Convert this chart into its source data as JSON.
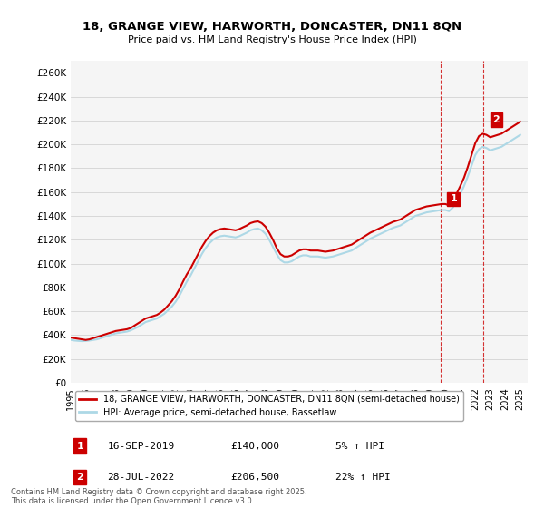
{
  "title": "18, GRANGE VIEW, HARWORTH, DONCASTER, DN11 8QN",
  "subtitle": "Price paid vs. HM Land Registry's House Price Index (HPI)",
  "ylabel": "",
  "xlabel": "",
  "ylim": [
    0,
    270000
  ],
  "yticks": [
    0,
    20000,
    40000,
    60000,
    80000,
    100000,
    120000,
    140000,
    160000,
    180000,
    200000,
    220000,
    240000,
    260000
  ],
  "hpi_color": "#add8e6",
  "price_color": "#cc0000",
  "vline_color": "#cc0000",
  "vline_style": "dashed",
  "background_color": "#f5f5f5",
  "legend_label_price": "18, GRANGE VIEW, HARWORTH, DONCASTER, DN11 8QN (semi-detached house)",
  "legend_label_hpi": "HPI: Average price, semi-detached house, Bassetlaw",
  "annotation1_label": "1",
  "annotation1_date": "16-SEP-2019",
  "annotation1_price": "£140,000",
  "annotation1_hpi": "5% ↑ HPI",
  "annotation1_year": 2019.71,
  "annotation2_label": "2",
  "annotation2_date": "28-JUL-2022",
  "annotation2_price": "£206,500",
  "annotation2_hpi": "22% ↑ HPI",
  "annotation2_year": 2022.56,
  "footer": "Contains HM Land Registry data © Crown copyright and database right 2025.\nThis data is licensed under the Open Government Licence v3.0.",
  "hpi_data": {
    "years": [
      1995.0,
      1995.25,
      1995.5,
      1995.75,
      1996.0,
      1996.25,
      1996.5,
      1996.75,
      1997.0,
      1997.25,
      1997.5,
      1997.75,
      1998.0,
      1998.25,
      1998.5,
      1998.75,
      1999.0,
      1999.25,
      1999.5,
      1999.75,
      2000.0,
      2000.25,
      2000.5,
      2000.75,
      2001.0,
      2001.25,
      2001.5,
      2001.75,
      2002.0,
      2002.25,
      2002.5,
      2002.75,
      2003.0,
      2003.25,
      2003.5,
      2003.75,
      2004.0,
      2004.25,
      2004.5,
      2004.75,
      2005.0,
      2005.25,
      2005.5,
      2005.75,
      2006.0,
      2006.25,
      2006.5,
      2006.75,
      2007.0,
      2007.25,
      2007.5,
      2007.75,
      2008.0,
      2008.25,
      2008.5,
      2008.75,
      2009.0,
      2009.25,
      2009.5,
      2009.75,
      2010.0,
      2010.25,
      2010.5,
      2010.75,
      2011.0,
      2011.25,
      2011.5,
      2011.75,
      2012.0,
      2012.25,
      2012.5,
      2012.75,
      2013.0,
      2013.25,
      2013.5,
      2013.75,
      2014.0,
      2014.25,
      2014.5,
      2014.75,
      2015.0,
      2015.25,
      2015.5,
      2015.75,
      2016.0,
      2016.25,
      2016.5,
      2016.75,
      2017.0,
      2017.25,
      2017.5,
      2017.75,
      2018.0,
      2018.25,
      2018.5,
      2018.75,
      2019.0,
      2019.25,
      2019.5,
      2019.75,
      2020.0,
      2020.25,
      2020.5,
      2020.75,
      2021.0,
      2021.25,
      2021.5,
      2021.75,
      2022.0,
      2022.25,
      2022.5,
      2022.75,
      2023.0,
      2023.25,
      2023.5,
      2023.75,
      2024.0,
      2024.25,
      2024.5,
      2024.75,
      2025.0
    ],
    "values": [
      36000,
      35500,
      35200,
      35000,
      35200,
      35500,
      36000,
      36500,
      37500,
      38500,
      39500,
      40500,
      41500,
      42000,
      42500,
      43000,
      44000,
      45500,
      47000,
      49000,
      51000,
      52000,
      53000,
      54000,
      56000,
      58000,
      61000,
      64000,
      68000,
      73000,
      79000,
      85000,
      90000,
      96000,
      102000,
      108000,
      113000,
      117000,
      120000,
      122000,
      123000,
      123500,
      123000,
      122500,
      122000,
      123000,
      124500,
      126000,
      128000,
      129000,
      129500,
      128000,
      125000,
      120000,
      114000,
      108000,
      103000,
      101000,
      101000,
      102000,
      104000,
      106000,
      107000,
      107000,
      106000,
      106000,
      106000,
      105500,
      105000,
      105500,
      106000,
      107000,
      108000,
      109000,
      110000,
      111000,
      113000,
      115000,
      117000,
      119000,
      121000,
      122500,
      124000,
      125500,
      127000,
      128500,
      130000,
      131000,
      132000,
      134000,
      136000,
      138000,
      140000,
      141000,
      142000,
      143000,
      143500,
      144000,
      144500,
      145000,
      145000,
      144000,
      147000,
      152000,
      158000,
      165000,
      173000,
      182000,
      191000,
      196000,
      198000,
      197000,
      195000,
      196000,
      197000,
      198000,
      200000,
      202000,
      204000,
      206000,
      208000
    ]
  },
  "price_data": {
    "years": [
      1995.0,
      1995.25,
      1995.5,
      1995.75,
      1996.0,
      1996.25,
      1996.5,
      1996.75,
      1997.0,
      1997.25,
      1997.5,
      1997.75,
      1998.0,
      1998.25,
      1998.5,
      1998.75,
      1999.0,
      1999.25,
      1999.5,
      1999.75,
      2000.0,
      2000.25,
      2000.5,
      2000.75,
      2001.0,
      2001.25,
      2001.5,
      2001.75,
      2002.0,
      2002.25,
      2002.5,
      2002.75,
      2003.0,
      2003.25,
      2003.5,
      2003.75,
      2004.0,
      2004.25,
      2004.5,
      2004.75,
      2005.0,
      2005.25,
      2005.5,
      2005.75,
      2006.0,
      2006.25,
      2006.5,
      2006.75,
      2007.0,
      2007.25,
      2007.5,
      2007.75,
      2008.0,
      2008.25,
      2008.5,
      2008.75,
      2009.0,
      2009.25,
      2009.5,
      2009.75,
      2010.0,
      2010.25,
      2010.5,
      2010.75,
      2011.0,
      2011.25,
      2011.5,
      2011.75,
      2012.0,
      2012.25,
      2012.5,
      2012.75,
      2013.0,
      2013.25,
      2013.5,
      2013.75,
      2014.0,
      2014.25,
      2014.5,
      2014.75,
      2015.0,
      2015.25,
      2015.5,
      2015.75,
      2016.0,
      2016.25,
      2016.5,
      2016.75,
      2017.0,
      2017.25,
      2017.5,
      2017.75,
      2018.0,
      2018.25,
      2018.5,
      2018.75,
      2019.0,
      2019.25,
      2019.5,
      2019.75,
      2020.0,
      2020.25,
      2020.5,
      2020.75,
      2021.0,
      2021.25,
      2021.5,
      2021.75,
      2022.0,
      2022.25,
      2022.5,
      2022.75,
      2023.0,
      2023.25,
      2023.5,
      2023.75,
      2024.0,
      2024.25,
      2024.5,
      2024.75,
      2025.0
    ],
    "values": [
      38000,
      37500,
      37000,
      36500,
      36000,
      36500,
      37500,
      38500,
      39500,
      40500,
      41500,
      42500,
      43500,
      44000,
      44500,
      45000,
      46000,
      48000,
      50000,
      52000,
      54000,
      55000,
      56000,
      57000,
      59000,
      61500,
      65000,
      68500,
      73000,
      78500,
      85000,
      91000,
      96000,
      102000,
      108000,
      114000,
      119000,
      123000,
      126000,
      128000,
      129000,
      129500,
      129000,
      128500,
      128000,
      129000,
      130500,
      132000,
      134000,
      135000,
      135500,
      134000,
      131000,
      126000,
      120000,
      113000,
      108000,
      106000,
      106000,
      107000,
      109000,
      111000,
      112000,
      112000,
      111000,
      111000,
      111000,
      110500,
      110000,
      110500,
      111000,
      112000,
      113000,
      114000,
      115000,
      116000,
      118000,
      120000,
      122000,
      124000,
      126000,
      127500,
      129000,
      130500,
      132000,
      133500,
      135000,
      136000,
      137000,
      139000,
      141000,
      143000,
      145000,
      146000,
      147000,
      148000,
      148500,
      149000,
      149500,
      150000,
      150000,
      149000,
      152500,
      158500,
      165000,
      172000,
      181000,
      191000,
      201000,
      207000,
      209000,
      208000,
      206000,
      207000,
      208000,
      209000,
      211000,
      213000,
      215000,
      217000,
      219000
    ]
  }
}
